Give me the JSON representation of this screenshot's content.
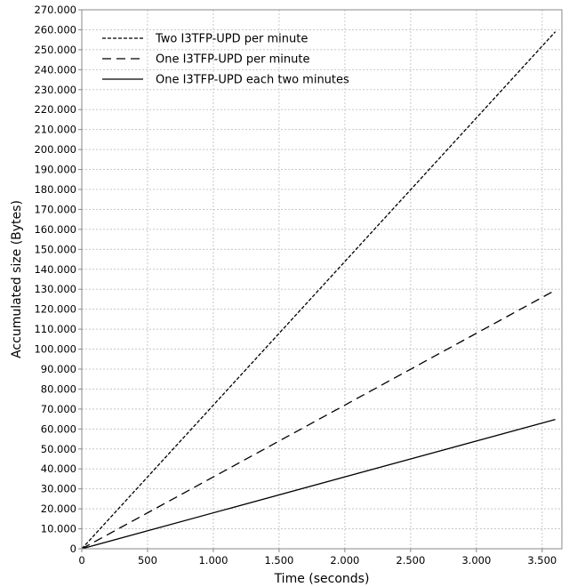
{
  "chart_data": {
    "type": "line",
    "title": "",
    "xlabel": "Time (seconds)",
    "ylabel": "Accumulated size (Bytes)",
    "xlim": [
      0,
      3650
    ],
    "ylim": [
      0,
      270000
    ],
    "x_ticks": [
      {
        "value": 0,
        "label": "0"
      },
      {
        "value": 500,
        "label": "500"
      },
      {
        "value": 1000,
        "label": "1.000"
      },
      {
        "value": 1500,
        "label": "1.500"
      },
      {
        "value": 2000,
        "label": "2.000"
      },
      {
        "value": 2500,
        "label": "2.500"
      },
      {
        "value": 3000,
        "label": "3.000"
      },
      {
        "value": 3500,
        "label": "3.500"
      }
    ],
    "y_ticks": [
      {
        "value": 0,
        "label": "0"
      },
      {
        "value": 10000,
        "label": "10.000"
      },
      {
        "value": 20000,
        "label": "20.000"
      },
      {
        "value": 30000,
        "label": "30.000"
      },
      {
        "value": 40000,
        "label": "40.000"
      },
      {
        "value": 50000,
        "label": "50.000"
      },
      {
        "value": 60000,
        "label": "60.000"
      },
      {
        "value": 70000,
        "label": "70.000"
      },
      {
        "value": 80000,
        "label": "80.000"
      },
      {
        "value": 90000,
        "label": "90.000"
      },
      {
        "value": 100000,
        "label": "100.000"
      },
      {
        "value": 110000,
        "label": "110.000"
      },
      {
        "value": 120000,
        "label": "120.000"
      },
      {
        "value": 130000,
        "label": "130.000"
      },
      {
        "value": 140000,
        "label": "140.000"
      },
      {
        "value": 150000,
        "label": "150.000"
      },
      {
        "value": 160000,
        "label": "160.000"
      },
      {
        "value": 170000,
        "label": "170.000"
      },
      {
        "value": 180000,
        "label": "180.000"
      },
      {
        "value": 190000,
        "label": "190.000"
      },
      {
        "value": 200000,
        "label": "200.000"
      },
      {
        "value": 210000,
        "label": "210.000"
      },
      {
        "value": 220000,
        "label": "220.000"
      },
      {
        "value": 230000,
        "label": "230.000"
      },
      {
        "value": 240000,
        "label": "240.000"
      },
      {
        "value": 250000,
        "label": "250.000"
      },
      {
        "value": 260000,
        "label": "260.000"
      },
      {
        "value": 270000,
        "label": "270.000"
      }
    ],
    "grid": true,
    "legend_position": "top-left",
    "series": [
      {
        "name": "Two I3TFP-UPD per minute",
        "style": "short-dash",
        "color": "#000000",
        "x": [
          0,
          3600
        ],
        "y": [
          0,
          259000
        ]
      },
      {
        "name": "One I3TFP-UPD per minute",
        "style": "long-dash",
        "color": "#000000",
        "x": [
          0,
          3600
        ],
        "y": [
          0,
          129500
        ]
      },
      {
        "name": "One I3TFP-UPD each two minutes",
        "style": "solid",
        "color": "#000000",
        "x": [
          0,
          3600
        ],
        "y": [
          0,
          64800
        ]
      }
    ]
  }
}
